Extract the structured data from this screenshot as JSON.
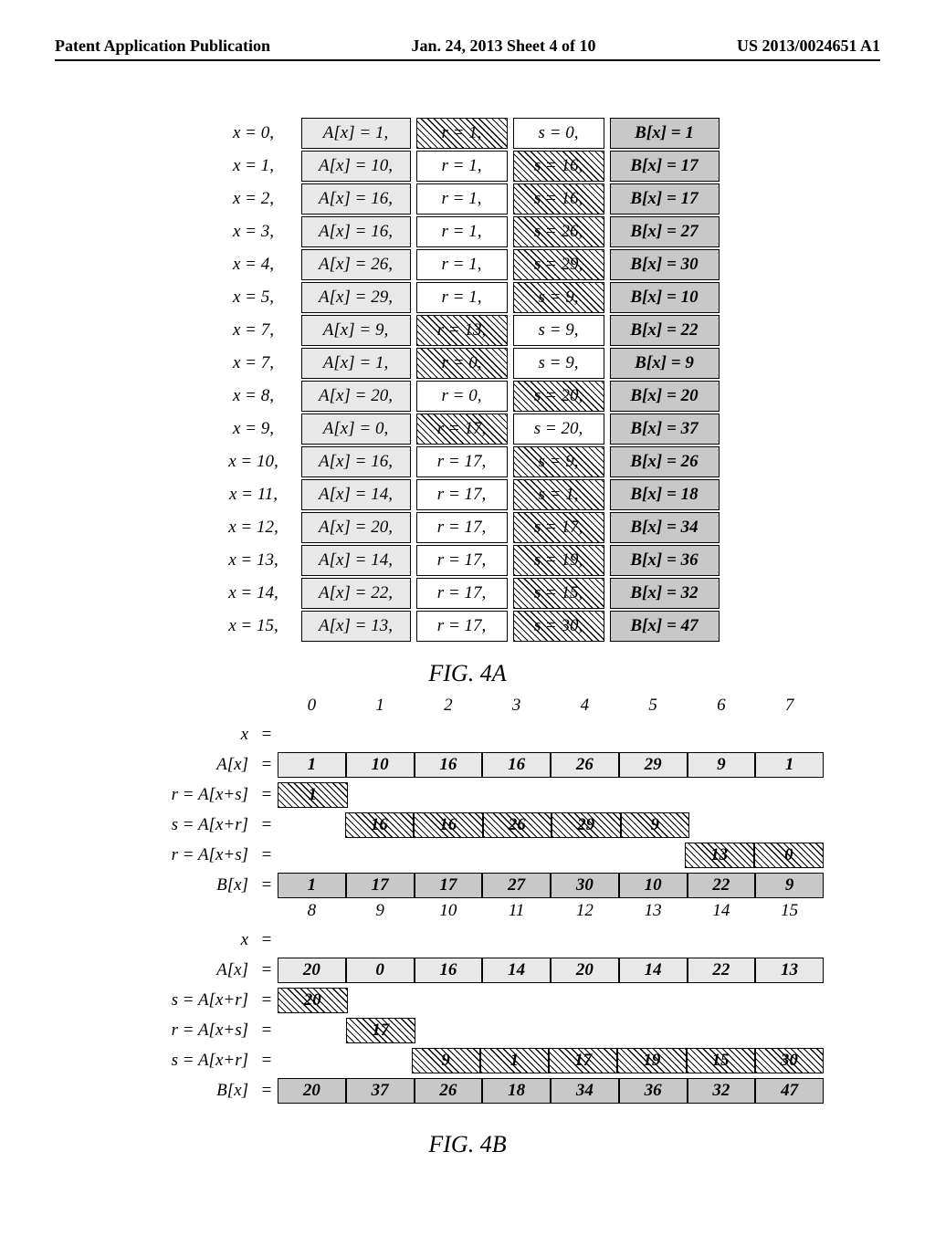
{
  "header": {
    "left": "Patent Application Publication",
    "mid": "Jan. 24, 2013  Sheet 4 of 10",
    "right": "US 2013/0024651 A1"
  },
  "fig4a": {
    "title": "FIG. 4A",
    "rows": [
      {
        "x": "x = 0,",
        "ax": "A[x] = 1,",
        "r": "r = 1,",
        "r_style": "hatch",
        "s": "s = 0,",
        "s_style": "plain",
        "bx": "B[x] = 1"
      },
      {
        "x": "x = 1,",
        "ax": "A[x] = 10,",
        "r": "r = 1,",
        "r_style": "plain",
        "s": "s = 16,",
        "s_style": "hatch",
        "bx": "B[x] = 17"
      },
      {
        "x": "x = 2,",
        "ax": "A[x] = 16,",
        "r": "r = 1,",
        "r_style": "plain",
        "s": "s = 16,",
        "s_style": "hatch",
        "bx": "B[x] = 17"
      },
      {
        "x": "x = 3,",
        "ax": "A[x] = 16,",
        "r": "r = 1,",
        "r_style": "plain",
        "s": "s = 26,",
        "s_style": "hatch",
        "bx": "B[x] = 27"
      },
      {
        "x": "x = 4,",
        "ax": "A[x] = 26,",
        "r": "r = 1,",
        "r_style": "plain",
        "s": "s = 29,",
        "s_style": "hatch",
        "bx": "B[x] = 30"
      },
      {
        "x": "x = 5,",
        "ax": "A[x] = 29,",
        "r": "r = 1,",
        "r_style": "plain",
        "s": "s = 9,",
        "s_style": "hatch",
        "bx": "B[x] = 10"
      },
      {
        "x": "x = 7,",
        "ax": "A[x] = 9,",
        "r": "r = 13,",
        "r_style": "hatch",
        "s": "s = 9,",
        "s_style": "plain",
        "bx": "B[x] = 22"
      },
      {
        "x": "x = 7,",
        "ax": "A[x] = 1,",
        "r": "r = 0,",
        "r_style": "hatch",
        "s": "s = 9,",
        "s_style": "plain",
        "bx": "B[x] = 9"
      },
      {
        "x": "x = 8,",
        "ax": "A[x] = 20,",
        "r": "r = 0,",
        "r_style": "plain",
        "s": "s = 20,",
        "s_style": "hatch",
        "bx": "B[x] = 20"
      },
      {
        "x": "x = 9,",
        "ax": "A[x] = 0,",
        "r": "r = 17,",
        "r_style": "hatch",
        "s": "s = 20,",
        "s_style": "plain",
        "bx": "B[x] = 37"
      },
      {
        "x": "x = 10,",
        "ax": "A[x] = 16,",
        "r": "r = 17,",
        "r_style": "plain",
        "s": "s = 9,",
        "s_style": "hatch",
        "bx": "B[x] = 26"
      },
      {
        "x": "x = 11,",
        "ax": "A[x] = 14,",
        "r": "r = 17,",
        "r_style": "plain",
        "s": "s = 1,",
        "s_style": "hatch",
        "bx": "B[x] = 18"
      },
      {
        "x": "x = 12,",
        "ax": "A[x] = 20,",
        "r": "r = 17,",
        "r_style": "plain",
        "s": "s = 17,",
        "s_style": "hatch",
        "bx": "B[x] = 34"
      },
      {
        "x": "x = 13,",
        "ax": "A[x] = 14,",
        "r": "r = 17,",
        "r_style": "plain",
        "s": "s = 19,",
        "s_style": "hatch",
        "bx": "B[x] = 36"
      },
      {
        "x": "x = 14,",
        "ax": "A[x] = 22,",
        "r": "r = 17,",
        "r_style": "plain",
        "s": "s = 15,",
        "s_style": "hatch",
        "bx": "B[x] = 32"
      },
      {
        "x": "x = 15,",
        "ax": "A[x] = 13,",
        "r": "r = 17,",
        "r_style": "plain",
        "s": "s = 30,",
        "s_style": "hatch",
        "bx": "B[x] = 47"
      }
    ]
  },
  "fig4b": {
    "title": "FIG. 4B",
    "top": {
      "x": [
        "0",
        "1",
        "2",
        "3",
        "4",
        "5",
        "6",
        "7"
      ],
      "Ax": [
        "1",
        "10",
        "16",
        "16",
        "26",
        "29",
        "9",
        "1"
      ],
      "rows": [
        {
          "label": "r = A[x+s]",
          "cells": [
            {
              "v": "1",
              "s": "hat"
            },
            {
              "s": "blank"
            },
            {
              "s": "blank"
            },
            {
              "s": "blank"
            },
            {
              "s": "blank"
            },
            {
              "s": "blank"
            },
            {
              "s": "blank"
            },
            {
              "s": "blank"
            }
          ]
        },
        {
          "label": "s = A[x+r]",
          "cells": [
            {
              "s": "blank"
            },
            {
              "v": "16",
              "s": "hat"
            },
            {
              "v": "16",
              "s": "hat"
            },
            {
              "v": "26",
              "s": "hat"
            },
            {
              "v": "29",
              "s": "hat"
            },
            {
              "v": "9",
              "s": "hat"
            },
            {
              "s": "blank"
            },
            {
              "s": "blank"
            }
          ]
        },
        {
          "label": "r = A[x+s]",
          "cells": [
            {
              "s": "blank"
            },
            {
              "s": "blank"
            },
            {
              "s": "blank"
            },
            {
              "s": "blank"
            },
            {
              "s": "blank"
            },
            {
              "s": "blank"
            },
            {
              "v": "13",
              "s": "hat"
            },
            {
              "v": "0",
              "s": "hat"
            }
          ]
        }
      ],
      "Bx": [
        "1",
        "17",
        "17",
        "27",
        "30",
        "10",
        "22",
        "9"
      ]
    },
    "bottom": {
      "x": [
        "8",
        "9",
        "10",
        "11",
        "12",
        "13",
        "14",
        "15"
      ],
      "Ax": [
        "20",
        "0",
        "16",
        "14",
        "20",
        "14",
        "22",
        "13"
      ],
      "rows": [
        {
          "label": "s = A[x+r]",
          "cells": [
            {
              "v": "20",
              "s": "hat"
            },
            {
              "s": "blank"
            },
            {
              "s": "blank"
            },
            {
              "s": "blank"
            },
            {
              "s": "blank"
            },
            {
              "s": "blank"
            },
            {
              "s": "blank"
            },
            {
              "s": "blank"
            }
          ]
        },
        {
          "label": "r = A[x+s]",
          "cells": [
            {
              "s": "blank"
            },
            {
              "v": "17",
              "s": "hat"
            },
            {
              "s": "blank"
            },
            {
              "s": "blank"
            },
            {
              "s": "blank"
            },
            {
              "s": "blank"
            },
            {
              "s": "blank"
            },
            {
              "s": "blank"
            }
          ]
        },
        {
          "label": "s = A[x+r]",
          "cells": [
            {
              "s": "blank"
            },
            {
              "s": "blank"
            },
            {
              "v": "9",
              "s": "hat"
            },
            {
              "v": "1",
              "s": "hat"
            },
            {
              "v": "17",
              "s": "hat"
            },
            {
              "v": "19",
              "s": "hat"
            },
            {
              "v": "15",
              "s": "hat"
            },
            {
              "v": "30",
              "s": "hat"
            }
          ]
        }
      ],
      "Bx": [
        "20",
        "37",
        "26",
        "18",
        "34",
        "36",
        "32",
        "47"
      ]
    }
  }
}
